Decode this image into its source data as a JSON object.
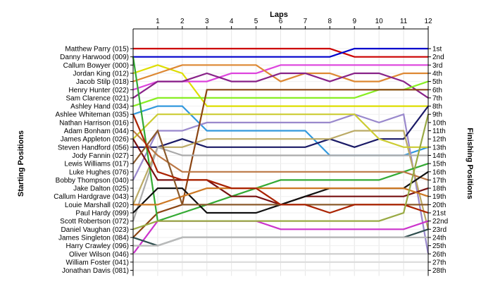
{
  "chart_data": {
    "type": "line",
    "title": "Laps",
    "ylabel_left": "Starting Positions",
    "ylabel_right": "Finishing Positions",
    "x": [
      0,
      1,
      2,
      3,
      4,
      5,
      6,
      7,
      8,
      9,
      10,
      11,
      12
    ],
    "x_tick_labels": [
      "1",
      "2",
      "3",
      "4",
      "5",
      "6",
      "7",
      "8",
      "9",
      "10",
      "11",
      "12"
    ],
    "y_range": [
      1,
      28
    ],
    "starting_labels": [
      "Matthew Parry (015)",
      "Danny Harwood (009)",
      "Callum Bowyer (000)",
      "Jordan King (012)",
      "Jacob Stilp (018)",
      "Henry Hunter (022)",
      "Sam Clarence (021)",
      "Ashley Hand (034)",
      "Ashlee Whiteman (035)",
      "Nathan Harrison (016)",
      "Adam Bonham (044)",
      "James Appleton (026)",
      "Steven Handford (056)",
      "Jody Fannin (027)",
      "Lewis Williams (017)",
      "Luke Hughes (076)",
      "Bobby Thompson (040)",
      "Jake Dalton (025)",
      "Callum Hardgrave (043)",
      "Louie Marshall (020)",
      "Paul Hardy (099)",
      "Scott Robertson (072)",
      "Daniel Vaughan (023)",
      "James Singleton (084)",
      "Harry Crawley (096)",
      "Oliver Wilson (046)",
      "William Foster (041)",
      "Jonathan Davis (081)"
    ],
    "finishing_labels": [
      "1st",
      "2nd",
      "3rd",
      "4th",
      "5th",
      "6th",
      "7th",
      "8th",
      "9th",
      "10th",
      "11th",
      "12th",
      "13th",
      "14th",
      "15th",
      "16th",
      "17th",
      "18th",
      "19th",
      "20th",
      "21st",
      "22nd",
      "23rd",
      "24th",
      "25th",
      "26th",
      "27th",
      "28th"
    ],
    "series": [
      {
        "color": "#cc0000",
        "values": [
          1,
          1,
          1,
          1,
          1,
          1,
          1,
          1,
          1,
          2,
          2,
          2,
          2
        ]
      },
      {
        "color": "#0000cc",
        "values": [
          2,
          2,
          2,
          2,
          2,
          2,
          2,
          2,
          2,
          1,
          1,
          1,
          1
        ]
      },
      {
        "color": "#dddd00",
        "values": [
          4,
          3,
          4,
          8,
          8,
          8,
          8,
          8,
          8,
          8,
          8,
          8,
          8
        ]
      },
      {
        "color": "#dd44dd",
        "values": [
          6,
          5,
          5,
          5,
          4,
          4,
          3,
          3,
          3,
          3,
          3,
          3,
          3
        ]
      },
      {
        "color": "#dd8833",
        "values": [
          5,
          4,
          3,
          3,
          3,
          3,
          5,
          4,
          4,
          5,
          5,
          4,
          4
        ]
      },
      {
        "color": "#882288",
        "values": [
          7,
          5,
          5,
          4,
          5,
          5,
          4,
          4,
          5,
          4,
          4,
          5,
          7
        ]
      },
      {
        "color": "#88ee22",
        "values": [
          8,
          7,
          7,
          7,
          7,
          7,
          7,
          7,
          7,
          7,
          6,
          6,
          5
        ]
      },
      {
        "color": "#3399dd",
        "values": [
          9,
          8,
          8,
          11,
          11,
          11,
          11,
          11,
          14,
          14,
          14,
          14,
          13
        ]
      },
      {
        "color": "#9988cc",
        "values": [
          17,
          11,
          11,
          10,
          10,
          10,
          10,
          10,
          10,
          9,
          10,
          9,
          26
        ]
      },
      {
        "color": "#1a1a66",
        "values": [
          13,
          13,
          12,
          13,
          13,
          13,
          13,
          13,
          12,
          13,
          12,
          12,
          8
        ]
      },
      {
        "color": "#bbaa66",
        "values": [
          20,
          13,
          13,
          12,
          12,
          12,
          12,
          12,
          12,
          11,
          11,
          11,
          23
        ]
      },
      {
        "color": "#cccc33",
        "values": [
          12,
          9,
          9,
          9,
          9,
          9,
          9,
          9,
          9,
          9,
          12,
          13,
          13
        ]
      },
      {
        "color": "#8b4513",
        "values": [
          24,
          21,
          20,
          6,
          6,
          6,
          6,
          6,
          6,
          6,
          6,
          6,
          6
        ]
      },
      {
        "color": "#aaaaaa",
        "values": [
          22,
          13,
          14,
          14,
          14,
          14,
          14,
          14,
          14,
          14,
          14,
          14,
          14
        ]
      },
      {
        "color": "#33aa33",
        "values": [
          2,
          22,
          21,
          20,
          19,
          18,
          17,
          17,
          17,
          17,
          17,
          16,
          15
        ]
      },
      {
        "color": "#bb7744",
        "values": [
          11,
          14,
          16,
          16,
          16,
          16,
          16,
          16,
          16,
          16,
          16,
          16,
          17
        ]
      },
      {
        "color": "#771111",
        "values": [
          12,
          17,
          17,
          17,
          19,
          19,
          20,
          19,
          19,
          19,
          19,
          19,
          18
        ]
      },
      {
        "color": "#111111",
        "values": [
          21,
          18,
          18,
          21,
          21,
          21,
          20,
          19,
          18,
          18,
          18,
          18,
          16
        ]
      },
      {
        "color": "#cc7722",
        "values": [
          20,
          20,
          19,
          18,
          18,
          18,
          18,
          18,
          18,
          18,
          18,
          18,
          19
        ]
      },
      {
        "color": "#8b5a2b",
        "values": [
          15,
          11,
          20,
          20,
          20,
          20,
          20,
          20,
          20,
          20,
          20,
          20,
          20
        ]
      },
      {
        "color": "#aa2200",
        "values": [
          9,
          16,
          17,
          17,
          18,
          18,
          20,
          20,
          21,
          20,
          20,
          20,
          21
        ]
      },
      {
        "color": "#cc33cc",
        "values": [
          26,
          22,
          22,
          22,
          22,
          22,
          23,
          23,
          23,
          23,
          23,
          23,
          22
        ]
      },
      {
        "color": "#99aa44",
        "values": [
          23,
          22,
          22,
          22,
          22,
          22,
          22,
          22,
          22,
          22,
          22,
          21,
          9
        ]
      },
      {
        "color": "#2f4f4f",
        "values": [
          24,
          25,
          24,
          24,
          24,
          24,
          24,
          24,
          24,
          24,
          24,
          24,
          23
        ]
      },
      {
        "color": "#bbbbbb",
        "values": [
          25,
          25,
          24,
          24,
          24,
          24,
          24,
          24,
          24,
          24,
          24,
          24,
          24
        ]
      },
      {
        "color": "#cccccc",
        "values": [
          26,
          26,
          26,
          26,
          26,
          26,
          26,
          26,
          26,
          26,
          26,
          26,
          26
        ]
      },
      {
        "color": "#dddddd",
        "values": [
          27,
          27,
          27,
          27,
          27,
          27,
          27,
          27,
          27,
          27,
          27,
          27,
          27
        ]
      },
      {
        "color": "#eeeeee",
        "values": [
          28,
          28,
          28,
          28,
          28,
          28,
          28,
          28,
          28,
          28,
          28,
          28,
          28
        ]
      }
    ]
  }
}
